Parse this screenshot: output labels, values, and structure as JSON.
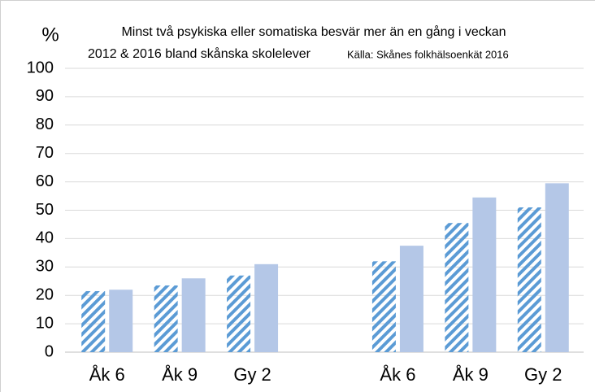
{
  "chart_data": {
    "type": "bar",
    "title": "Minst två psykiska eller somatiska besvär mer än en gång i veckan",
    "subtitle": "2012 & 2016 bland skånska skolelever",
    "source": "Källa: Skånes folkhälsoenkät 2016",
    "y_label": "%",
    "categories": [
      "Åk 6",
      "Åk 9",
      "Gy 2",
      null,
      "Åk 6",
      "Åk 9",
      "Gy 2"
    ],
    "series": [
      {
        "color": "#5b9bd5",
        "pattern": "hatch",
        "values": [
          21.5,
          23.5,
          27,
          null,
          32,
          45.5,
          51
        ]
      },
      {
        "color": "#b4c7e7",
        "pattern": "solid",
        "values": [
          22,
          26,
          31,
          null,
          37.5,
          54.5,
          59.5
        ]
      }
    ],
    "ylim": [
      0,
      100
    ],
    "yticks": [
      0,
      10,
      20,
      30,
      40,
      50,
      60,
      70,
      80,
      90,
      100
    ],
    "grid": true
  }
}
